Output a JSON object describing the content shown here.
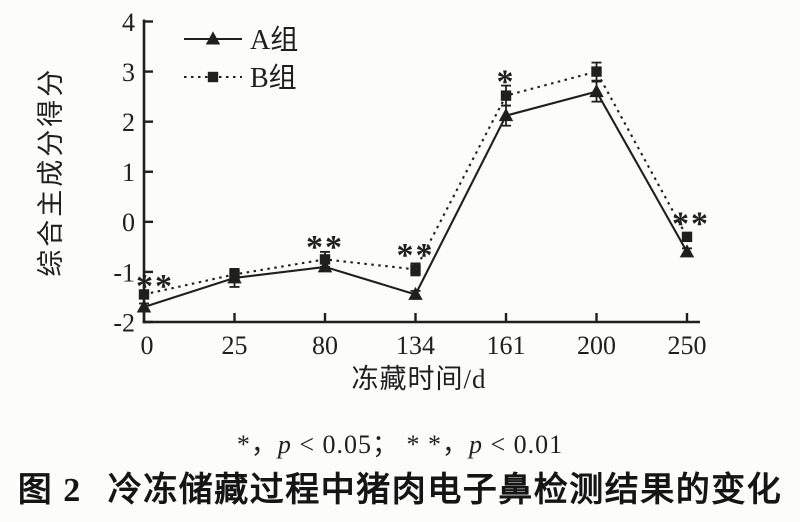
{
  "page_bg": "#fcfcfb",
  "ink_color": "#1f1f1f",
  "chart_data": {
    "type": "line",
    "title": "",
    "xlabel": "冻藏时间/d",
    "ylabel": "综合主成分得分",
    "categories": [
      "0",
      "25",
      "80",
      "134",
      "161",
      "200",
      "250"
    ],
    "ylim": [
      -2,
      4
    ],
    "yticks": [
      4,
      3,
      2,
      1,
      0,
      -1,
      -2
    ],
    "grid": false,
    "legend_position": "top-left",
    "series": [
      {
        "name": "A组",
        "marker": "triangle",
        "line": "solid",
        "values": [
          -1.7,
          -1.12,
          -0.9,
          -1.45,
          2.12,
          2.6,
          -0.6
        ],
        "errors": [
          0.07,
          0.18,
          0.08,
          0.07,
          0.2,
          0.2,
          0.07
        ]
      },
      {
        "name": "B组",
        "marker": "square",
        "line": "dotted",
        "values": [
          -1.45,
          -1.05,
          -0.75,
          -0.95,
          2.52,
          3.0,
          -0.3
        ],
        "errors": [
          0.07,
          0.1,
          0.15,
          0.12,
          0.2,
          0.18,
          0.08
        ]
      }
    ],
    "annotations": [
      {
        "category_index": 0,
        "value": -1.2,
        "text": "**",
        "dx": 11
      },
      {
        "category_index": 2,
        "value": -0.42,
        "text": "**",
        "dx": 0
      },
      {
        "category_index": 3,
        "value": -0.58,
        "text": "**",
        "dx": 0
      },
      {
        "category_index": 4,
        "value": 2.88,
        "text": "*",
        "dx": 0
      },
      {
        "category_index": 6,
        "value": 0.05,
        "text": "**",
        "dx": 4
      }
    ]
  },
  "caption": {
    "note_parts": [
      "*，",
      "p",
      " < 0.05；  ",
      "* *，",
      "p",
      " < 0.01"
    ],
    "figure_label": "图 2",
    "figure_title": "冷冻储藏过程中猪肉电子鼻检测结果的变化"
  }
}
